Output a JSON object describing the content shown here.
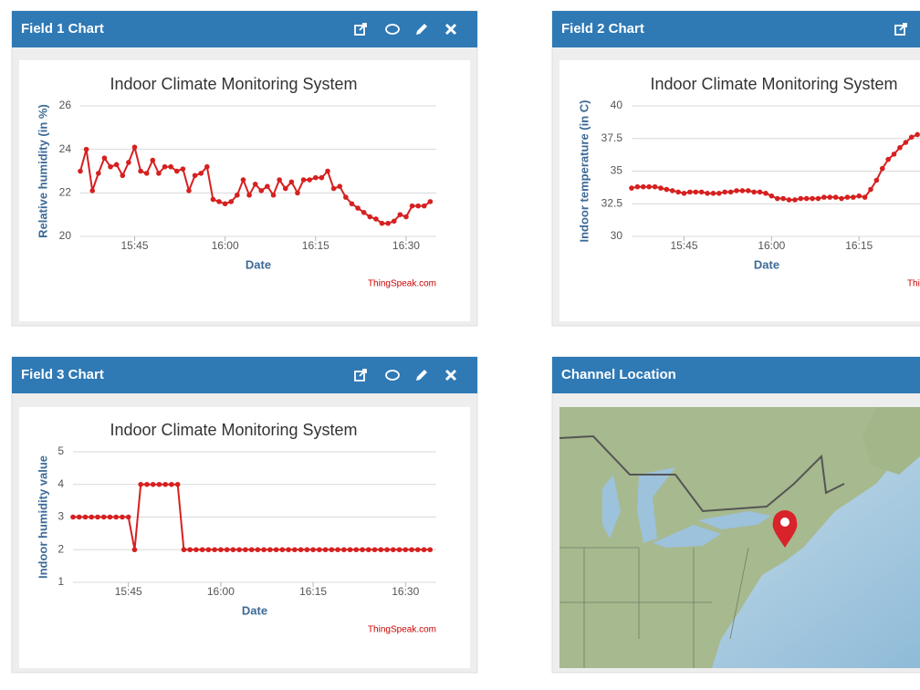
{
  "panels": [
    {
      "title": "Field 1 Chart"
    },
    {
      "title": "Field 2 Chart"
    },
    {
      "title": "Field 3 Chart"
    },
    {
      "title": "Channel Location"
    }
  ],
  "chart_data": [
    {
      "type": "line",
      "title": "Indoor Climate Monitoring System",
      "xlabel": "Date",
      "ylabel": "Relative humidity (in %)",
      "credit": "ThingSpeak.com",
      "color": "#d62020",
      "x": [
        "15:36",
        "15:37",
        "15:38",
        "15:39",
        "15:40",
        "15:41",
        "15:42",
        "15:43",
        "15:44",
        "15:45",
        "15:46",
        "15:47",
        "15:48",
        "15:49",
        "15:50",
        "15:51",
        "15:52",
        "15:53",
        "15:54",
        "15:55",
        "15:56",
        "15:57",
        "15:58",
        "15:59",
        "16:00",
        "16:01",
        "16:02",
        "16:03",
        "16:04",
        "16:05",
        "16:06",
        "16:07",
        "16:08",
        "16:09",
        "16:10",
        "16:11",
        "16:12",
        "16:13",
        "16:14",
        "16:15",
        "16:16",
        "16:17",
        "16:18",
        "16:19",
        "16:20",
        "16:21",
        "16:22",
        "16:23",
        "16:24",
        "16:25",
        "16:26",
        "16:27",
        "16:28",
        "16:29",
        "16:30",
        "16:31",
        "16:32",
        "16:33",
        "16:34"
      ],
      "values": [
        23.0,
        24.0,
        22.1,
        22.9,
        23.6,
        23.2,
        23.3,
        22.8,
        23.4,
        24.1,
        23.0,
        22.9,
        23.5,
        22.9,
        23.2,
        23.2,
        23.0,
        23.1,
        22.1,
        22.8,
        22.9,
        23.2,
        21.7,
        21.6,
        21.5,
        21.6,
        21.9,
        22.6,
        21.9,
        22.4,
        22.1,
        22.3,
        21.9,
        22.6,
        22.2,
        22.5,
        22.0,
        22.6,
        22.6,
        22.7,
        22.7,
        23.0,
        22.2,
        22.3,
        21.8,
        21.5,
        21.3,
        21.1,
        20.9,
        20.8,
        20.6,
        20.6,
        20.7,
        21.0,
        20.9,
        21.4,
        21.4,
        21.4,
        21.6
      ],
      "xlim": [
        "15:36",
        "16:35"
      ],
      "xticks": [
        "15:45",
        "16:00",
        "16:15",
        "16:30"
      ],
      "ylim": [
        20,
        26
      ],
      "yticks": [
        20,
        22,
        24,
        26
      ],
      "grid": true
    },
    {
      "type": "line",
      "title": "Indoor Climate Monitoring System",
      "xlabel": "Date",
      "ylabel": "Indoor temperature (in C)",
      "credit": "ThingSpeak.com",
      "color": "#d62020",
      "x": [
        "15:36",
        "15:37",
        "15:38",
        "15:39",
        "15:40",
        "15:41",
        "15:42",
        "15:43",
        "15:44",
        "15:45",
        "15:46",
        "15:47",
        "15:48",
        "15:49",
        "15:50",
        "15:51",
        "15:52",
        "15:53",
        "15:54",
        "15:55",
        "15:56",
        "15:57",
        "15:58",
        "15:59",
        "16:00",
        "16:01",
        "16:02",
        "16:03",
        "16:04",
        "16:05",
        "16:06",
        "16:07",
        "16:08",
        "16:09",
        "16:10",
        "16:11",
        "16:12",
        "16:13",
        "16:14",
        "16:15",
        "16:16",
        "16:17",
        "16:18",
        "16:19",
        "16:20",
        "16:21",
        "16:22",
        "16:23",
        "16:24",
        "16:25"
      ],
      "values": [
        33.7,
        33.8,
        33.8,
        33.8,
        33.8,
        33.7,
        33.6,
        33.5,
        33.4,
        33.3,
        33.4,
        33.4,
        33.4,
        33.3,
        33.3,
        33.3,
        33.4,
        33.4,
        33.5,
        33.5,
        33.5,
        33.4,
        33.4,
        33.3,
        33.1,
        32.9,
        32.9,
        32.8,
        32.8,
        32.9,
        32.9,
        32.9,
        32.9,
        33.0,
        33.0,
        33.0,
        32.9,
        33.0,
        33.0,
        33.1,
        33.0,
        33.6,
        34.3,
        35.2,
        35.9,
        36.3,
        36.8,
        37.2,
        37.6,
        37.8
      ],
      "xlim": [
        "15:36",
        "16:35"
      ],
      "xticks": [
        "15:45",
        "16:00",
        "16:15"
      ],
      "ylim": [
        30,
        40
      ],
      "yticks": [
        30,
        32.5,
        35,
        37.5,
        40
      ],
      "grid": true
    },
    {
      "type": "line",
      "title": "Indoor Climate Monitoring System",
      "xlabel": "Date",
      "ylabel": "Indoor humidity value",
      "credit": "ThingSpeak.com",
      "color": "#d62020",
      "x": [
        "15:36",
        "15:37",
        "15:38",
        "15:39",
        "15:40",
        "15:41",
        "15:42",
        "15:43",
        "15:44",
        "15:45",
        "15:46",
        "15:47",
        "15:48",
        "15:49",
        "15:50",
        "15:51",
        "15:52",
        "15:53",
        "15:54",
        "15:55",
        "15:56",
        "15:57",
        "15:58",
        "15:59",
        "16:00",
        "16:01",
        "16:02",
        "16:03",
        "16:04",
        "16:05",
        "16:06",
        "16:07",
        "16:08",
        "16:09",
        "16:10",
        "16:11",
        "16:12",
        "16:13",
        "16:14",
        "16:15",
        "16:16",
        "16:17",
        "16:18",
        "16:19",
        "16:20",
        "16:21",
        "16:22",
        "16:23",
        "16:24",
        "16:25",
        "16:26",
        "16:27",
        "16:28",
        "16:29",
        "16:30",
        "16:31",
        "16:32",
        "16:33",
        "16:34"
      ],
      "values": [
        3,
        3,
        3,
        3,
        3,
        3,
        3,
        3,
        3,
        3,
        2,
        4,
        4,
        4,
        4,
        4,
        4,
        4,
        2,
        2,
        2,
        2,
        2,
        2,
        2,
        2,
        2,
        2,
        2,
        2,
        2,
        2,
        2,
        2,
        2,
        2,
        2,
        2,
        2,
        2,
        2,
        2,
        2,
        2,
        2,
        2,
        2,
        2,
        2,
        2,
        2,
        2,
        2,
        2,
        2,
        2,
        2,
        2,
        2
      ],
      "xlim": [
        "15:36",
        "16:35"
      ],
      "xticks": [
        "15:45",
        "16:00",
        "16:15",
        "16:30"
      ],
      "ylim": [
        1,
        5
      ],
      "yticks": [
        1,
        2,
        3,
        4,
        5
      ],
      "grid": true
    }
  ]
}
